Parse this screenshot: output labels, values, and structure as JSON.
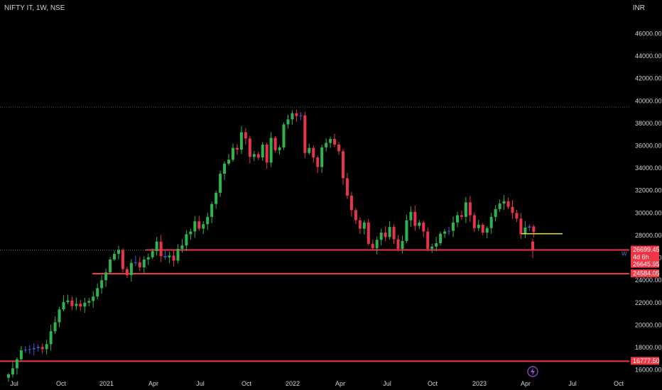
{
  "header": {
    "symbol_label": "NIFTY IT, 1W, NSE",
    "currency": "INR"
  },
  "colors": {
    "background": "#000000",
    "up": "#2fb34a",
    "down": "#e8344a",
    "doji": "#4a5bd8",
    "level": "#f23645",
    "marker": "#e6e04a",
    "grid": "#3a3a3a",
    "text": "#d1d4dc"
  },
  "chart_data": {
    "type": "candlestick",
    "title": "NIFTY IT, 1W, NSE",
    "xlabel": "",
    "ylabel": "INR",
    "ylim": [
      15300,
      47600
    ],
    "y_ticks": [
      "46000.00",
      "44000.00",
      "42000.00",
      "40000.00",
      "38000.00",
      "36000.00",
      "34000.00",
      "32000.00",
      "30000.00",
      "28000.00",
      "26000.00",
      "24000.00",
      "22000.00",
      "20000.00",
      "18000.00",
      "16000.00"
    ],
    "x_ticks": [
      "Jul",
      "Oct",
      "2021",
      "Apr",
      "Jul",
      "Oct",
      "2022",
      "Apr",
      "Jul",
      "Oct",
      "2023",
      "Apr",
      "Jul",
      "Oct"
    ],
    "levels": [
      {
        "value": 26699.45,
        "label": "26699.45"
      },
      {
        "value": 24584.05,
        "label": "24584.05"
      },
      {
        "value": 16777.5,
        "label": "16777.50"
      }
    ],
    "dotted_high": 39450,
    "countdown": "4d 6h",
    "close_label": "26645.95",
    "w_marker": "W",
    "marker_value": 28150,
    "closes": [
      15600,
      16150,
      16950,
      17750,
      17800,
      17850,
      17950,
      18050,
      17850,
      18300,
      19450,
      20250,
      21400,
      22050,
      22200,
      21700,
      21900,
      21650,
      22000,
      22150,
      22550,
      23300,
      24000,
      24700,
      25850,
      26350,
      26700,
      25000,
      24450,
      25550,
      25600,
      25150,
      25850,
      26050,
      26600,
      27450,
      26150,
      26050,
      26200,
      25750,
      26800,
      27100,
      28100,
      28350,
      29250,
      28600,
      29000,
      29650,
      30800,
      31800,
      33500,
      34400,
      34750,
      35800,
      35650,
      37200,
      36650,
      35000,
      35250,
      34950,
      36100,
      34500,
      36700,
      35600,
      35850,
      37900,
      38350,
      38900,
      38650,
      38700,
      35350,
      35800,
      34950,
      34100,
      35850,
      36250,
      36600,
      36100,
      35500,
      33100,
      31550,
      30250,
      29350,
      28600,
      29150,
      27250,
      26850,
      27600,
      28250,
      27850,
      28750,
      27650,
      26800,
      27500,
      29350,
      30100,
      28850,
      29150,
      28350,
      26800,
      27000,
      27300,
      28150,
      28350,
      28400,
      29150,
      29800,
      29650,
      30950,
      29800,
      28650,
      28950,
      28250,
      28650,
      29650,
      30350,
      30850,
      31050,
      30550,
      30000,
      29500,
      28100,
      28700,
      28800,
      28300
    ],
    "last_candle": {
      "open": 27450,
      "high": 27700,
      "low": 25950,
      "close": 26646
    }
  }
}
